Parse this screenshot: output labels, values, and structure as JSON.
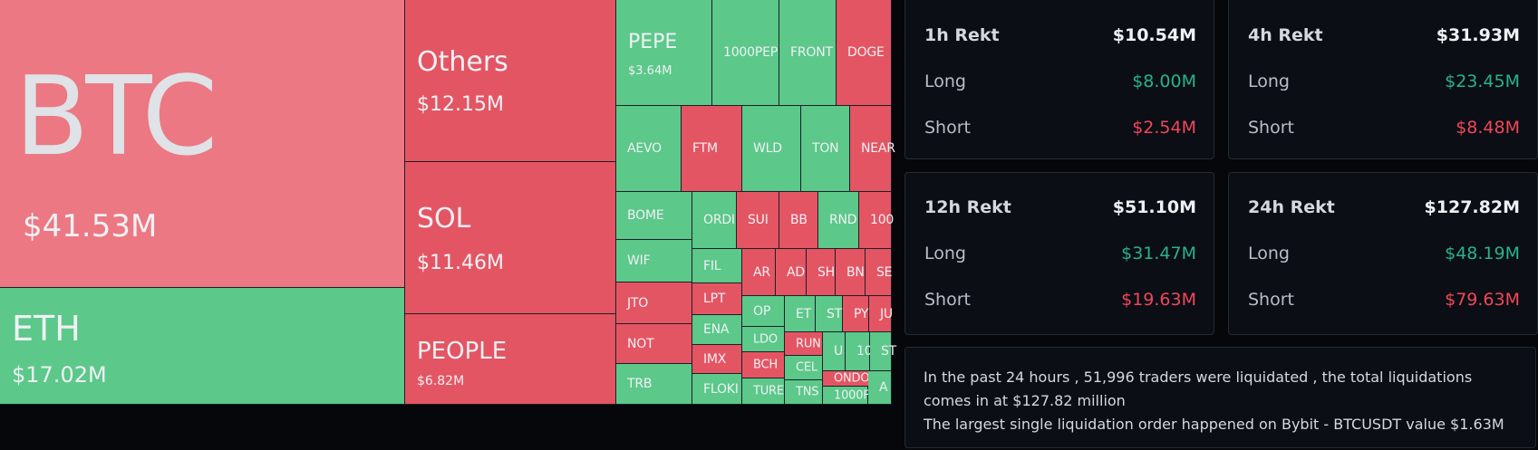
{
  "treemap": {
    "colors": {
      "long_liq": "#e8737f",
      "short_liq": "#5cc88a",
      "red": "#e45563",
      "green": "#5cc88a"
    },
    "tiles": [
      {
        "name": "btc",
        "label": "BTC",
        "value": "$41.53M",
        "color": "red_light",
        "big": true
      },
      {
        "name": "eth",
        "label": "ETH",
        "value": "$17.02M",
        "color": "green",
        "big": true
      },
      {
        "name": "others",
        "label": "Others",
        "value": "$12.15M",
        "color": "red",
        "big": true
      },
      {
        "name": "sol",
        "label": "SOL",
        "value": "$11.46M",
        "color": "red",
        "big": true
      },
      {
        "name": "people",
        "label": "PEOPLE",
        "value": "$6.82M",
        "color": "red",
        "big": true
      },
      {
        "name": "pepe",
        "label": "PEPE",
        "value": "$3.64M",
        "color": "green",
        "big": true
      },
      {
        "name": "1000pepe",
        "label": "1000PEP",
        "color": "green"
      },
      {
        "name": "front",
        "label": "FRONT",
        "color": "green"
      },
      {
        "name": "doge",
        "label": "DOGE",
        "color": "red"
      },
      {
        "name": "aevo",
        "label": "AEVO",
        "color": "green"
      },
      {
        "name": "ftm",
        "label": "FTM",
        "color": "red"
      },
      {
        "name": "wld",
        "label": "WLD",
        "color": "green"
      },
      {
        "name": "ton",
        "label": "TON",
        "color": "green"
      },
      {
        "name": "near",
        "label": "NEAR",
        "color": "red"
      },
      {
        "name": "bome",
        "label": "BOME",
        "color": "green"
      },
      {
        "name": "ordi",
        "label": "ORDI",
        "color": "green"
      },
      {
        "name": "sui",
        "label": "SUI",
        "color": "red"
      },
      {
        "name": "bb",
        "label": "BB",
        "color": "red"
      },
      {
        "name": "rnd",
        "label": "RND",
        "color": "green"
      },
      {
        "name": "100x",
        "label": "100",
        "color": "red"
      },
      {
        "name": "wif",
        "label": "WIF",
        "color": "green"
      },
      {
        "name": "fil",
        "label": "FIL",
        "color": "green"
      },
      {
        "name": "ar",
        "label": "AR",
        "color": "red"
      },
      {
        "name": "ad",
        "label": "AD",
        "color": "red"
      },
      {
        "name": "sh",
        "label": "SH",
        "color": "red"
      },
      {
        "name": "bn",
        "label": "BN",
        "color": "red"
      },
      {
        "name": "se",
        "label": "SE",
        "color": "red"
      },
      {
        "name": "jto",
        "label": "JTO",
        "color": "red"
      },
      {
        "name": "lpt",
        "label": "LPT",
        "color": "red"
      },
      {
        "name": "op",
        "label": "OP",
        "color": "green"
      },
      {
        "name": "et",
        "label": "ET",
        "color": "green"
      },
      {
        "name": "st",
        "label": "ST",
        "color": "green"
      },
      {
        "name": "py",
        "label": "PY",
        "color": "red"
      },
      {
        "name": "ju",
        "label": "JU",
        "color": "red"
      },
      {
        "name": "ena",
        "label": "ENA",
        "color": "green"
      },
      {
        "name": "ldo",
        "label": "LDO",
        "color": "green"
      },
      {
        "name": "run",
        "label": "RUN",
        "color": "red"
      },
      {
        "name": "u",
        "label": "U",
        "color": "green"
      },
      {
        "name": "10x",
        "label": "10",
        "color": "green"
      },
      {
        "name": "st2",
        "label": "ST",
        "color": "green"
      },
      {
        "name": "not",
        "label": "NOT",
        "color": "red"
      },
      {
        "name": "imx",
        "label": "IMX",
        "color": "red"
      },
      {
        "name": "bch",
        "label": "BCH",
        "color": "red"
      },
      {
        "name": "cel",
        "label": "CEL",
        "color": "green"
      },
      {
        "name": "ondo",
        "label": "ONDO",
        "color": "red"
      },
      {
        "name": "trb",
        "label": "TRB",
        "color": "green"
      },
      {
        "name": "floki",
        "label": "FLOKI",
        "color": "green"
      },
      {
        "name": "turbo",
        "label": "TURE",
        "color": "green"
      },
      {
        "name": "tns",
        "label": "TNS",
        "color": "green"
      },
      {
        "name": "1000f",
        "label": "1000F",
        "color": "green"
      },
      {
        "name": "a",
        "label": "A",
        "color": "green"
      }
    ]
  },
  "rekt": [
    {
      "name": "1h",
      "title": "1h Rekt",
      "total": "$10.54M",
      "long_label": "Long",
      "long": "$8.00M",
      "short_label": "Short",
      "short": "$2.54M"
    },
    {
      "name": "4h",
      "title": "4h Rekt",
      "total": "$31.93M",
      "long_label": "Long",
      "long": "$23.45M",
      "short_label": "Short",
      "short": "$8.48M"
    },
    {
      "name": "12h",
      "title": "12h Rekt",
      "total": "$51.10M",
      "long_label": "Long",
      "long": "$31.47M",
      "short_label": "Short",
      "short": "$19.63M"
    },
    {
      "name": "24h",
      "title": "24h Rekt",
      "total": "$127.82M",
      "long_label": "Long",
      "long": "$48.19M",
      "short_label": "Short",
      "short": "$79.63M"
    }
  ],
  "summary": {
    "line1": "In the past 24 hours , 51,996 traders were liquidated , the total liquidations comes in at $127.82 million",
    "line2": "The largest single liquidation order happened on Bybit - BTCUSDT value $1.63M"
  }
}
